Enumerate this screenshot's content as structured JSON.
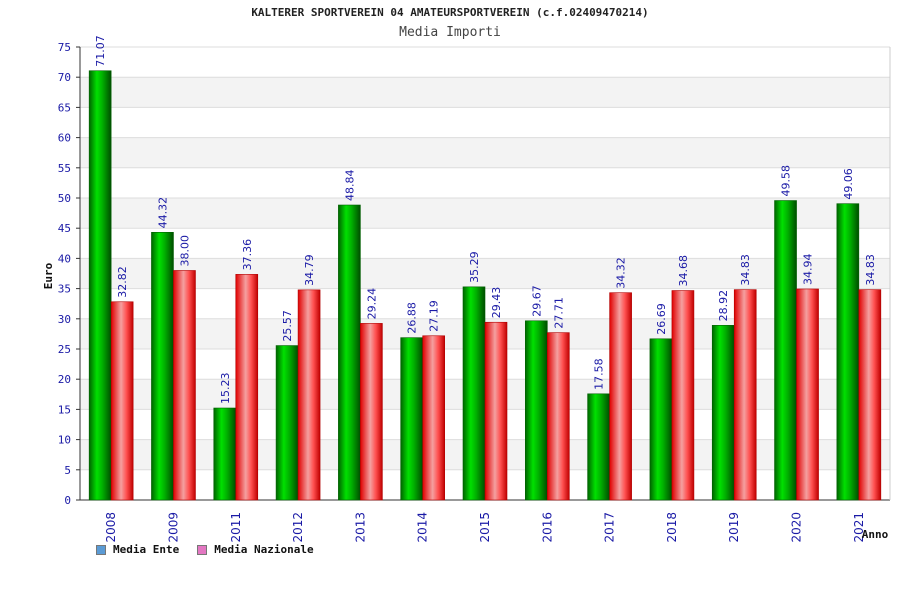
{
  "chart_data": {
    "type": "bar",
    "title": "KALTERER SPORTVEREIN 04 AMATEURSPORTVEREIN (c.f.02409470214)",
    "subtitle": "Media Importi",
    "xlabel": "Anno",
    "ylabel": "Euro",
    "ylim": [
      0,
      75
    ],
    "yticks": [
      "0",
      "5",
      "10",
      "15",
      "20",
      "25",
      "30",
      "35",
      "40",
      "45",
      "50",
      "55",
      "60",
      "65",
      "70",
      "75"
    ],
    "grid": true,
    "legend_position": "bottom-left",
    "categories": [
      "2008",
      "2009",
      "2011",
      "2012",
      "2013",
      "2014",
      "2015",
      "2016",
      "2017",
      "2018",
      "2019",
      "2020",
      "2021"
    ],
    "series": [
      {
        "name": "Media Ente",
        "color": "#00c000",
        "legend_color": "#5b9bd5",
        "values": [
          71.07,
          44.32,
          15.23,
          25.57,
          48.84,
          26.88,
          35.29,
          29.67,
          17.58,
          26.69,
          28.92,
          49.58,
          49.06
        ],
        "labels": [
          "71.07",
          "44.32",
          "15.23",
          "25.57",
          "48.84",
          "26.88",
          "35.29",
          "29.67",
          "17.58",
          "26.69",
          "28.92",
          "49.58",
          "49.06"
        ]
      },
      {
        "name": "Media Nazionale",
        "color": "#ff3030",
        "legend_color": "#e377c2",
        "values": [
          32.82,
          38.0,
          37.36,
          34.79,
          29.24,
          27.19,
          29.43,
          27.71,
          34.32,
          34.68,
          34.83,
          34.94,
          34.83
        ],
        "labels": [
          "32.82",
          "38.00",
          "37.36",
          "34.79",
          "29.24",
          "27.19",
          "29.43",
          "27.71",
          "34.32",
          "34.68",
          "34.83",
          "34.94",
          "34.83"
        ]
      }
    ]
  }
}
